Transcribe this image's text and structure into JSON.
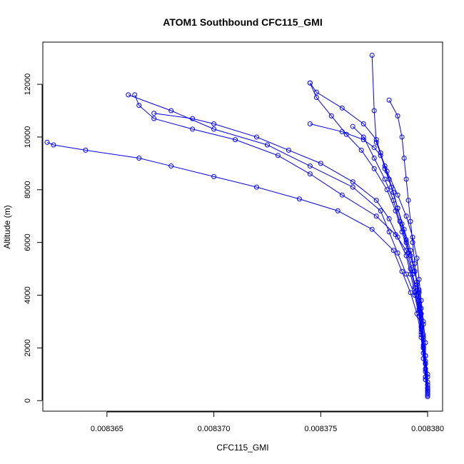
{
  "chart_data": {
    "type": "line",
    "title": "ATOM1 Southbound CFC115_GMI",
    "xlabel": "CFC115_GMI",
    "ylabel": "Altitude (m)",
    "xlim": [
      0.008362,
      0.0083807
    ],
    "ylim": [
      -400,
      13600
    ],
    "x_ticks": [
      0.008365,
      0.00837,
      0.008375,
      0.00838
    ],
    "x_tick_labels": [
      "0.008365",
      "0.008370",
      "0.008375",
      "0.008380"
    ],
    "y_ticks": [
      0,
      2000,
      4000,
      6000,
      8000,
      10000,
      12000
    ],
    "y_tick_labels": [
      "0",
      "2000",
      "4000",
      "6000",
      "8000",
      "10000",
      "12000"
    ],
    "grid": false,
    "legend": "none",
    "marker": "open-circle",
    "color": "#0000ff",
    "series": [
      {
        "x": [
          0.00838,
          0.00838,
          0.0083799,
          0.0083799,
          0.0083798,
          0.0083797,
          0.0083796,
          0.0083794,
          0.008379,
          0.0083786,
          0.0083782,
          0.0083778,
          0.0083765,
          0.0083745,
          0.0083725,
          0.00837,
          0.008368,
          0.008366
        ],
        "y": [
          200,
          500,
          900,
          1400,
          2000,
          2600,
          3200,
          4000,
          4800,
          5600,
          6400,
          7200,
          8100,
          8900,
          9700,
          10300,
          11000,
          11600
        ]
      },
      {
        "x": [
          0.00838,
          0.00838,
          0.0083799,
          0.0083798,
          0.0083797,
          0.0083795,
          0.0083792,
          0.0083788,
          0.0083784,
          0.0083774,
          0.0083758,
          0.008374,
          0.008372,
          0.00837,
          0.008368,
          0.0083665,
          0.008364,
          0.0083625,
          0.0083622
        ],
        "y": [
          300,
          700,
          1200,
          1800,
          2500,
          3300,
          4100,
          4900,
          5700,
          6500,
          7200,
          7650,
          8100,
          8500,
          8900,
          9200,
          9500,
          9700,
          9800
        ]
      },
      {
        "x": [
          0.00838,
          0.00838,
          0.0083799,
          0.0083798,
          0.0083797,
          0.0083796,
          0.0083794,
          0.0083792,
          0.008379,
          0.0083785,
          0.0083776,
          0.008376,
          0.0083745,
          0.008373,
          0.008371,
          0.008369,
          0.0083672,
          0.0083665,
          0.0083663
        ],
        "y": [
          400,
          900,
          1500,
          2100,
          2800,
          3500,
          4300,
          5000,
          5700,
          6300,
          7000,
          7800,
          8600,
          9300,
          9900,
          10300,
          10700,
          11200,
          11600
        ]
      },
      {
        "x": [
          0.0083799,
          0.0083798,
          0.0083797,
          0.0083796,
          0.0083795,
          0.0083793,
          0.0083791,
          0.0083788,
          0.0083785,
          0.0083781,
          0.0083775,
          0.0083769,
          0.0083762,
          0.0083755,
          0.0083748,
          0.0083745
        ],
        "y": [
          800,
          1600,
          2400,
          3200,
          4000,
          4800,
          5600,
          6400,
          7200,
          8000,
          8800,
          9500,
          10100,
          10800,
          11500,
          12050
        ]
      },
      {
        "x": [
          0.00838,
          0.0083799,
          0.0083799,
          0.0083798,
          0.0083797,
          0.0083796,
          0.0083795,
          0.0083793,
          0.008379,
          0.0083786,
          0.0083781,
          0.0083776,
          0.0083775,
          0.0083774
        ],
        "y": [
          600,
          1400,
          2200,
          3000,
          3800,
          4600,
          5400,
          6200,
          7000,
          7800,
          8700,
          9800,
          11000,
          13100
        ]
      },
      {
        "x": [
          0.00838,
          0.00838,
          0.0083799,
          0.0083799,
          0.0083798,
          0.0083798,
          0.0083797,
          0.0083796,
          0.0083794,
          0.0083792,
          0.008379,
          0.0083788,
          0.0083786,
          0.0083784,
          0.0083782,
          0.008378,
          0.0083778,
          0.0083775,
          0.008377,
          0.008376,
          0.0083745
        ],
        "y": [
          150,
          600,
          1100,
          1700,
          2300,
          2900,
          3500,
          4200,
          4900,
          5500,
          6100,
          6700,
          7300,
          7900,
          8400,
          8900,
          9300,
          9600,
          9900,
          10200,
          10500
        ]
      },
      {
        "x": [
          0.00838,
          0.0083799,
          0.0083799,
          0.0083798,
          0.0083797,
          0.0083796,
          0.0083794,
          0.0083792,
          0.008379,
          0.0083786,
          0.0083782,
          0.0083776,
          0.0083765,
          0.008375,
          0.0083735,
          0.008372,
          0.00837,
          0.008369,
          0.0083672
        ],
        "y": [
          250,
          800,
          1400,
          2000,
          2700,
          3400,
          4100,
          4800,
          5500,
          6200,
          6900,
          7600,
          8300,
          9000,
          9500,
          10000,
          10500,
          10700,
          10900
        ]
      },
      {
        "x": [
          0.00838,
          0.00838,
          0.0083799,
          0.0083798,
          0.0083797,
          0.0083796,
          0.0083795,
          0.0083793,
          0.008379,
          0.0083787,
          0.0083784,
          0.008378,
          0.0083775,
          0.008377,
          0.0083765
        ],
        "y": [
          350,
          1000,
          1700,
          2400,
          3100,
          3800,
          4500,
          5200,
          6000,
          6800,
          7600,
          8400,
          9200,
          10000,
          10400
        ]
      },
      {
        "x": [
          0.0083799,
          0.0083799,
          0.0083798,
          0.0083797,
          0.0083796,
          0.0083794,
          0.0083792,
          0.0083789,
          0.0083786,
          0.0083783,
          0.008378,
          0.0083778,
          0.0083776,
          0.008377,
          0.008376,
          0.0083748,
          0.0083745
        ],
        "y": [
          900,
          1700,
          2500,
          3300,
          4100,
          4900,
          5700,
          6500,
          7300,
          8100,
          8800,
          9400,
          9900,
          10500,
          11100,
          11700,
          12050
        ]
      },
      {
        "x": [
          0.00838,
          0.0083799,
          0.0083798,
          0.0083797,
          0.0083796,
          0.0083795,
          0.0083794,
          0.0083793,
          0.0083792,
          0.0083791,
          0.008379,
          0.0083789,
          0.0083788,
          0.0083786,
          0.0083782
        ],
        "y": [
          450,
          1200,
          2000,
          2800,
          3600,
          4400,
          5200,
          6000,
          6800,
          7600,
          8400,
          9200,
          10000,
          10800,
          11400
        ]
      }
    ]
  }
}
